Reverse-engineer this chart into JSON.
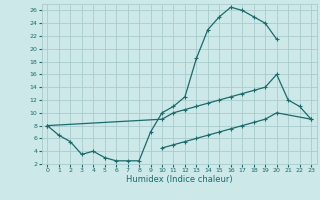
{
  "xlabel": "Humidex (Indice chaleur)",
  "bg_color": "#cce8e8",
  "grid_color": "#aacccc",
  "line_color": "#1a6b6b",
  "line1_x": [
    0,
    1,
    2,
    3,
    4,
    5,
    6,
    7,
    8,
    9,
    10,
    11,
    12,
    13,
    14,
    15,
    16,
    17,
    18,
    19,
    20
  ],
  "line1_y": [
    8,
    6.5,
    5.5,
    3.5,
    4,
    3,
    2.5,
    2.5,
    2.5,
    7,
    10,
    11,
    12.5,
    18.5,
    23,
    25,
    26.5,
    26,
    25,
    24,
    21.5
  ],
  "line2_x": [
    0,
    10,
    11,
    12,
    13,
    14,
    15,
    16,
    17,
    18,
    19,
    20,
    21,
    22,
    23
  ],
  "line2_y": [
    8,
    9,
    10,
    10.5,
    11,
    11.5,
    12,
    12.5,
    13,
    13.5,
    14,
    16,
    12,
    11,
    9
  ],
  "line3_x": [
    10,
    11,
    12,
    13,
    14,
    15,
    16,
    17,
    18,
    19,
    20,
    23
  ],
  "line3_y": [
    4.5,
    5,
    5.5,
    6,
    6.5,
    7,
    7.5,
    8,
    8.5,
    9,
    10,
    9
  ],
  "xlim": [
    -0.5,
    23.5
  ],
  "ylim": [
    2,
    27
  ],
  "xticks": [
    0,
    1,
    2,
    3,
    4,
    5,
    6,
    7,
    8,
    9,
    10,
    11,
    12,
    13,
    14,
    15,
    16,
    17,
    18,
    19,
    20,
    21,
    22,
    23
  ],
  "yticks": [
    2,
    4,
    6,
    8,
    10,
    12,
    14,
    16,
    18,
    20,
    22,
    24,
    26
  ]
}
